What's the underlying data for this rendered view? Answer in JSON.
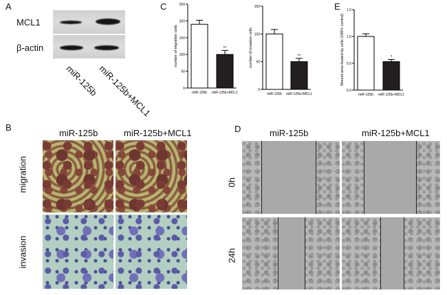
{
  "panels": {
    "A": "A",
    "B": "B",
    "C": "C",
    "D": "D",
    "E": "E"
  },
  "blot": {
    "rows": [
      "MCL1",
      "β-actin"
    ],
    "lanes": [
      "miR-125b",
      "miR-125b+MCL1"
    ]
  },
  "panelB": {
    "columns": [
      "miR-125b",
      "miR-125b+MCL1"
    ],
    "rows": [
      "migration",
      "invasion"
    ]
  },
  "panelD": {
    "columns": [
      "miR-125b",
      "miR-125b+MCL1"
    ],
    "rows": [
      "0h",
      "24h"
    ]
  },
  "chart_data": [
    {
      "type": "bar",
      "panel": "C",
      "categories": [
        "miR-125b",
        "miR-125b+MCL1"
      ],
      "values": [
        190,
        100
      ],
      "errors": [
        12,
        12
      ],
      "annotations": [
        "",
        "**"
      ],
      "ylabel": "number of migration cells",
      "ylim": [
        0,
        250
      ],
      "yticks": [
        "0",
        "50",
        "100",
        "150",
        "200",
        "250"
      ],
      "colors": [
        "#ffffff",
        "#231f20"
      ]
    },
    {
      "type": "bar",
      "panel": "C",
      "categories": [
        "miR-125b",
        "miR-125b+MCL1"
      ],
      "values": [
        100,
        50
      ],
      "errors": [
        8,
        6
      ],
      "annotations": [
        "",
        "**"
      ],
      "ylabel": "number of invasion cells",
      "ylim": [
        0,
        150
      ],
      "yticks": [
        "0",
        "50",
        "100",
        "150"
      ],
      "colors": [
        "#ffffff",
        "#231f20"
      ]
    },
    {
      "type": "bar",
      "panel": "E",
      "categories": [
        "miR-125b",
        "miR-125b+MCL1"
      ],
      "values": [
        1.0,
        0.53
      ],
      "errors": [
        0.05,
        0.04
      ],
      "annotations": [
        "",
        "*"
      ],
      "ylabel": "Wound area healed by cells (100% control)",
      "ylim": [
        0,
        1.5
      ],
      "yticks": [
        "0.0",
        "0.5",
        "1.0",
        "1.5"
      ],
      "colors": [
        "#ffffff",
        "#231f20"
      ]
    }
  ]
}
